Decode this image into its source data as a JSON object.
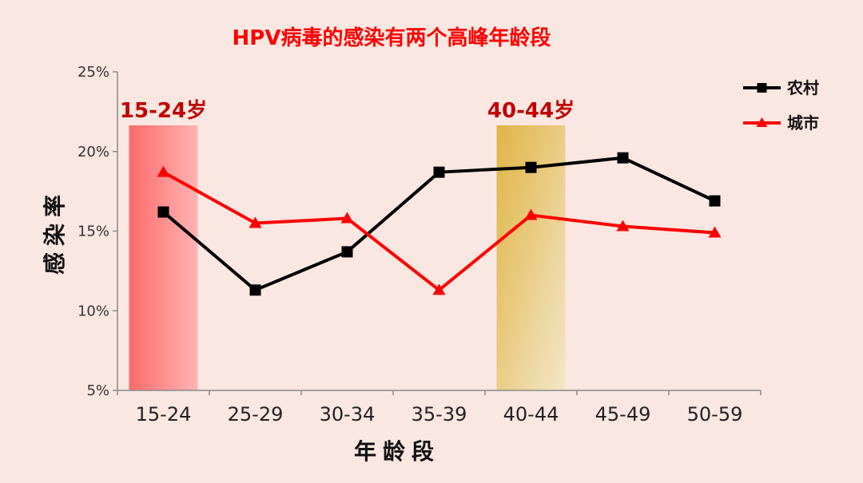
{
  "chart_data": {
    "type": "line",
    "title": "HPV病毒的感染有两个高峰年龄段",
    "xlabel": "年龄段",
    "ylabel": "感染率",
    "categories": [
      "15-24",
      "25-29",
      "30-34",
      "35-39",
      "40-44",
      "45-49",
      "50-59"
    ],
    "ylim": [
      5,
      25
    ],
    "yticks": [
      "5%",
      "10%",
      "15%",
      "20%",
      "25%"
    ],
    "series": [
      {
        "name": "农村",
        "values": [
          16.2,
          11.3,
          13.7,
          18.7,
          19.0,
          19.6,
          16.9
        ],
        "color": "#000000",
        "marker": "square"
      },
      {
        "name": "城市",
        "values": [
          18.7,
          15.5,
          15.8,
          11.3,
          16.0,
          15.3,
          14.9
        ],
        "color": "#ff0000",
        "marker": "triangle"
      }
    ],
    "highlights": [
      {
        "category": "15-24",
        "label": "15-24岁"
      },
      {
        "category": "40-44",
        "label": "40-44岁"
      }
    ],
    "legend_position": "top-right",
    "grid": false,
    "colors": {
      "title": "#ff0000",
      "highlight_label": "#c00000"
    }
  }
}
